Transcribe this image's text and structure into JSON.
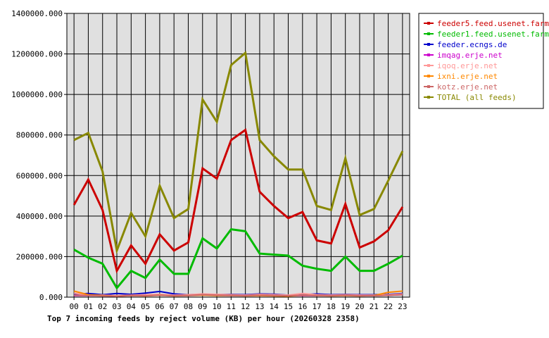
{
  "chart_data": {
    "type": "line",
    "title": "Top 7 incoming feeds by reject volume (KB) per hour (20260328 2358)",
    "xlabel": "",
    "ylabel": "",
    "categories": [
      "00",
      "01",
      "02",
      "03",
      "04",
      "05",
      "06",
      "07",
      "08",
      "09",
      "10",
      "11",
      "12",
      "13",
      "14",
      "15",
      "16",
      "17",
      "18",
      "19",
      "20",
      "21",
      "22",
      "23"
    ],
    "ylim": [
      0,
      1400000
    ],
    "yticks": [
      "0.000",
      "200000.000",
      "400000.000",
      "600000.000",
      "800000.000",
      "1000000.000",
      "1200000.000",
      "1400000.000"
    ],
    "grid": true,
    "legend_position": "right",
    "series": [
      {
        "name": "feeder5.feed.usenet.farm",
        "color": "#cc0000",
        "values": [
          455000,
          580000,
          430000,
          130000,
          255000,
          165000,
          310000,
          230000,
          270000,
          635000,
          585000,
          775000,
          825000,
          520000,
          450000,
          390000,
          420000,
          280000,
          265000,
          460000,
          245000,
          275000,
          330000,
          445000
        ]
      },
      {
        "name": "feeder1.feed.usenet.farm",
        "color": "#00bb00",
        "values": [
          235000,
          195000,
          165000,
          45000,
          130000,
          95000,
          185000,
          115000,
          115000,
          290000,
          240000,
          335000,
          325000,
          215000,
          210000,
          205000,
          155000,
          140000,
          130000,
          200000,
          130000,
          130000,
          165000,
          205000
        ]
      },
      {
        "name": "feeder.ecngs.de",
        "color": "#0000cc",
        "values": [
          15000,
          18000,
          12000,
          18000,
          14000,
          20000,
          28000,
          16000,
          12000,
          14000,
          12000,
          14000,
          12000,
          16000,
          15000,
          10000,
          12000,
          16000,
          12000,
          14000,
          12000,
          12000,
          14000,
          18000
        ]
      },
      {
        "name": "imqag.erje.net",
        "color": "#cc00cc",
        "values": [
          8000,
          8000,
          7000,
          6000,
          8000,
          10000,
          12000,
          8000,
          9000,
          14000,
          12000,
          10000,
          9000,
          12000,
          9000,
          8000,
          8000,
          8000,
          9000,
          10000,
          8000,
          8000,
          9000,
          12000
        ]
      },
      {
        "name": "iqoq.erje.net",
        "color": "#ff9999",
        "values": [
          20000,
          10000,
          10000,
          8000,
          10000,
          12000,
          14000,
          10000,
          12000,
          16000,
          14000,
          12000,
          10000,
          14000,
          12000,
          10000,
          18000,
          12000,
          10000,
          12000,
          10000,
          10000,
          12000,
          16000
        ]
      },
      {
        "name": "ixni.erje.net",
        "color": "#ff8800",
        "values": [
          30000,
          12000,
          8000,
          5000,
          8000,
          6000,
          10000,
          6000,
          8000,
          10000,
          8000,
          8000,
          6000,
          8000,
          6000,
          5000,
          10000,
          8000,
          6000,
          8000,
          6000,
          8000,
          24000,
          30000
        ]
      },
      {
        "name": "kotz.erje.net",
        "color": "#cc6666",
        "values": [
          10000,
          8000,
          6000,
          5000,
          8000,
          7000,
          10000,
          7000,
          8000,
          12000,
          10000,
          8000,
          7000,
          10000,
          8000,
          7000,
          10000,
          8000,
          7000,
          9000,
          7000,
          7000,
          9000,
          12000
        ]
      },
      {
        "name": "TOTAL (all feeds)",
        "color": "#888800",
        "values": [
          775000,
          810000,
          620000,
          230000,
          415000,
          300000,
          550000,
          390000,
          435000,
          975000,
          865000,
          1145000,
          1205000,
          775000,
          695000,
          630000,
          630000,
          450000,
          430000,
          685000,
          405000,
          435000,
          575000,
          720000
        ]
      }
    ]
  }
}
